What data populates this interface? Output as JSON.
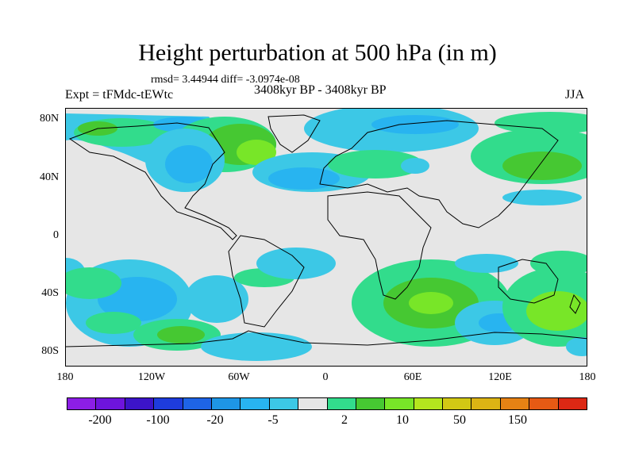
{
  "title": "Height perturbation at 500 hPa (in m)",
  "stats": "rmsd= 3.44944 diff= -3.0974e-08",
  "expt": "Expt = tFMdc-tEWtc",
  "period": "3408kyr BP - 3408kyr BP",
  "season": "JJA",
  "map": {
    "lat_labels": [
      "80N",
      "40N",
      "0",
      "40S",
      "80S"
    ],
    "lon_labels": [
      "180",
      "120W",
      "60W",
      "0",
      "60E",
      "120E",
      "180"
    ],
    "background": "#e6e6e6"
  },
  "colorbar": {
    "colors": [
      "#8c1ee6",
      "#6e14dc",
      "#3c14c8",
      "#1e3cdc",
      "#1e64e6",
      "#1e96e6",
      "#28b4f0",
      "#3cc8e6",
      "#e6e6e6",
      "#32dc8c",
      "#46c832",
      "#78e628",
      "#b4e61e",
      "#d2c814",
      "#dcb414",
      "#e68214",
      "#e65a14",
      "#dc2814"
    ],
    "labels": [
      "-200",
      "-100",
      "-20",
      "-5",
      "2",
      "10",
      "50",
      "150"
    ]
  }
}
